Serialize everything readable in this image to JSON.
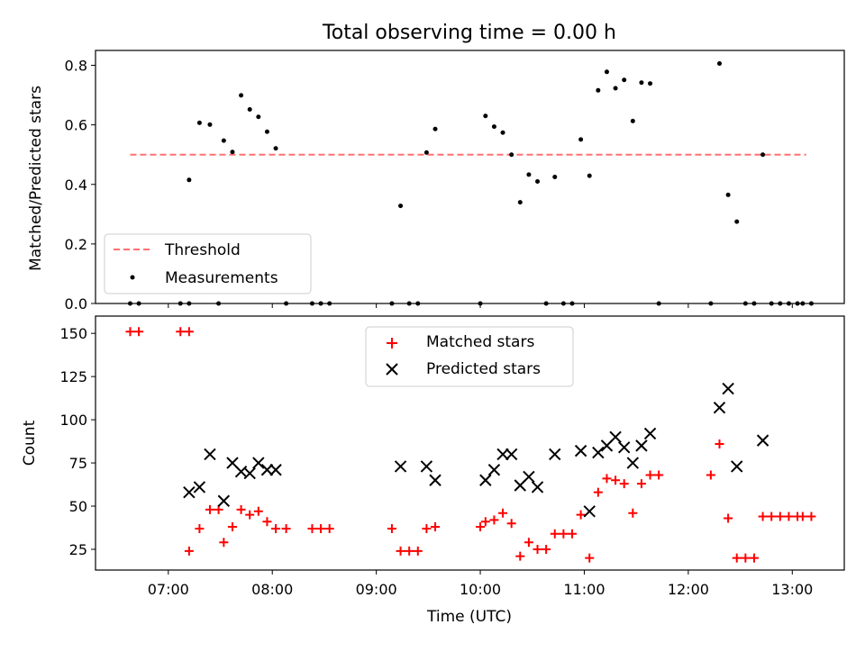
{
  "chart_data": [
    {
      "type": "scatter",
      "title": "Total observing time = 0.00 h",
      "xlabel": "",
      "ylabel": "Matched/Predicted stars",
      "xlim": [
        "06:18",
        "13:30"
      ],
      "ylim": [
        0,
        0.85
      ],
      "y_ticks": [
        "0.0",
        "0.2",
        "0.4",
        "0.6",
        "0.8"
      ],
      "legend_position": "lower-left",
      "threshold": {
        "name": "Threshold",
        "value": 0.5,
        "x_range": [
          "06:38",
          "13:08"
        ],
        "color": "#ff7070"
      },
      "series": [
        {
          "name": "Measurements",
          "color": "#000000",
          "points": [
            [
              "06:38",
              0
            ],
            [
              "06:43",
              0
            ],
            [
              "07:07",
              0
            ],
            [
              "07:12",
              0
            ],
            [
              "07:12",
              0.415
            ],
            [
              "07:18",
              0.607
            ],
            [
              "07:24",
              0.601
            ],
            [
              "07:29",
              0
            ],
            [
              "07:32",
              0.547
            ],
            [
              "07:37",
              0.509
            ],
            [
              "07:42",
              0.699
            ],
            [
              "07:47",
              0.652
            ],
            [
              "07:52",
              0.627
            ],
            [
              "07:57",
              0.577
            ],
            [
              "08:02",
              0.521
            ],
            [
              "08:08",
              0
            ],
            [
              "08:23",
              0
            ],
            [
              "08:28",
              0
            ],
            [
              "08:33",
              0
            ],
            [
              "09:09",
              0
            ],
            [
              "09:14",
              0.328
            ],
            [
              "09:19",
              0
            ],
            [
              "09:24",
              0
            ],
            [
              "09:29",
              0.507
            ],
            [
              "09:34",
              0.586
            ],
            [
              "10:00",
              0
            ],
            [
              "10:03",
              0.63
            ],
            [
              "10:08",
              0.594
            ],
            [
              "10:13",
              0.574
            ],
            [
              "10:18",
              0.5
            ],
            [
              "10:23",
              0.34
            ],
            [
              "10:28",
              0.433
            ],
            [
              "10:33",
              0.41
            ],
            [
              "10:38",
              0
            ],
            [
              "10:43",
              0.425
            ],
            [
              "10:48",
              0
            ],
            [
              "10:53",
              0
            ],
            [
              "10:58",
              0.551
            ],
            [
              "11:03",
              0.429
            ],
            [
              "11:08",
              0.716
            ],
            [
              "11:13",
              0.778
            ],
            [
              "11:18",
              0.723
            ],
            [
              "11:23",
              0.751
            ],
            [
              "11:28",
              0.613
            ],
            [
              "11:33",
              0.742
            ],
            [
              "11:38",
              0.739
            ],
            [
              "11:43",
              0
            ],
            [
              "12:13",
              0
            ],
            [
              "12:18",
              0.806
            ],
            [
              "12:23",
              0.365
            ],
            [
              "12:28",
              0.275
            ],
            [
              "12:33",
              0
            ],
            [
              "12:38",
              0
            ],
            [
              "12:43",
              0.5
            ],
            [
              "12:48",
              0
            ],
            [
              "12:53",
              0
            ],
            [
              "12:58",
              0
            ],
            [
              "13:03",
              0
            ],
            [
              "13:06",
              0
            ],
            [
              "13:11",
              0
            ]
          ]
        }
      ]
    },
    {
      "type": "scatter",
      "title": "",
      "xlabel": "Time (UTC)",
      "ylabel": "Count",
      "xlim": [
        "06:18",
        "13:30"
      ],
      "ylim": [
        13,
        160
      ],
      "x_ticks": [
        "07:00",
        "08:00",
        "09:00",
        "10:00",
        "11:00",
        "12:00",
        "13:00"
      ],
      "y_ticks": [
        "25",
        "50",
        "75",
        "100",
        "125",
        "150"
      ],
      "legend_position": "upper-center",
      "series": [
        {
          "name": "Matched stars",
          "marker": "plus",
          "color": "#ff0000",
          "points": [
            [
              "06:38",
              151
            ],
            [
              "06:43",
              151
            ],
            [
              "07:07",
              151
            ],
            [
              "07:12",
              151
            ],
            [
              "07:12",
              24
            ],
            [
              "07:18",
              37
            ],
            [
              "07:24",
              48
            ],
            [
              "07:29",
              48
            ],
            [
              "07:32",
              29
            ],
            [
              "07:37",
              38
            ],
            [
              "07:42",
              48
            ],
            [
              "07:47",
              45
            ],
            [
              "07:52",
              47
            ],
            [
              "07:57",
              41
            ],
            [
              "08:02",
              37
            ],
            [
              "08:08",
              37
            ],
            [
              "08:23",
              37
            ],
            [
              "08:28",
              37
            ],
            [
              "08:33",
              37
            ],
            [
              "09:09",
              37
            ],
            [
              "09:14",
              24
            ],
            [
              "09:19",
              24
            ],
            [
              "09:24",
              24
            ],
            [
              "09:29",
              37
            ],
            [
              "09:34",
              38
            ],
            [
              "10:00",
              38
            ],
            [
              "10:03",
              41
            ],
            [
              "10:08",
              42
            ],
            [
              "10:13",
              46
            ],
            [
              "10:18",
              40
            ],
            [
              "10:23",
              21
            ],
            [
              "10:28",
              29
            ],
            [
              "10:33",
              25
            ],
            [
              "10:38",
              25
            ],
            [
              "10:43",
              34
            ],
            [
              "10:48",
              34
            ],
            [
              "10:53",
              34
            ],
            [
              "10:58",
              45
            ],
            [
              "11:03",
              20
            ],
            [
              "11:08",
              58
            ],
            [
              "11:13",
              66
            ],
            [
              "11:18",
              65
            ],
            [
              "11:23",
              63
            ],
            [
              "11:28",
              46
            ],
            [
              "11:33",
              63
            ],
            [
              "11:38",
              68
            ],
            [
              "11:43",
              68
            ],
            [
              "12:13",
              68
            ],
            [
              "12:18",
              86
            ],
            [
              "12:23",
              43
            ],
            [
              "12:28",
              20
            ],
            [
              "12:33",
              20
            ],
            [
              "12:38",
              20
            ],
            [
              "12:43",
              44
            ],
            [
              "12:48",
              44
            ],
            [
              "12:53",
              44
            ],
            [
              "12:58",
              44
            ],
            [
              "13:03",
              44
            ],
            [
              "13:06",
              44
            ],
            [
              "13:11",
              44
            ]
          ]
        },
        {
          "name": "Predicted stars",
          "marker": "x",
          "color": "#000000",
          "points": [
            [
              "07:12",
              58
            ],
            [
              "07:18",
              61
            ],
            [
              "07:24",
              80
            ],
            [
              "07:32",
              53
            ],
            [
              "07:37",
              75
            ],
            [
              "07:42",
              70
            ],
            [
              "07:47",
              69
            ],
            [
              "07:52",
              75
            ],
            [
              "07:57",
              71
            ],
            [
              "08:02",
              71
            ],
            [
              "09:14",
              73
            ],
            [
              "09:29",
              73
            ],
            [
              "09:34",
              65
            ],
            [
              "10:03",
              65
            ],
            [
              "10:08",
              71
            ],
            [
              "10:13",
              80
            ],
            [
              "10:18",
              80
            ],
            [
              "10:23",
              62
            ],
            [
              "10:28",
              67
            ],
            [
              "10:33",
              61
            ],
            [
              "10:43",
              80
            ],
            [
              "10:58",
              82
            ],
            [
              "11:03",
              47
            ],
            [
              "11:08",
              81
            ],
            [
              "11:13",
              85
            ],
            [
              "11:18",
              90
            ],
            [
              "11:23",
              84
            ],
            [
              "11:28",
              75
            ],
            [
              "11:33",
              85
            ],
            [
              "11:38",
              92
            ],
            [
              "12:18",
              107
            ],
            [
              "12:23",
              118
            ],
            [
              "12:28",
              73
            ],
            [
              "12:43",
              88
            ]
          ]
        }
      ]
    }
  ]
}
